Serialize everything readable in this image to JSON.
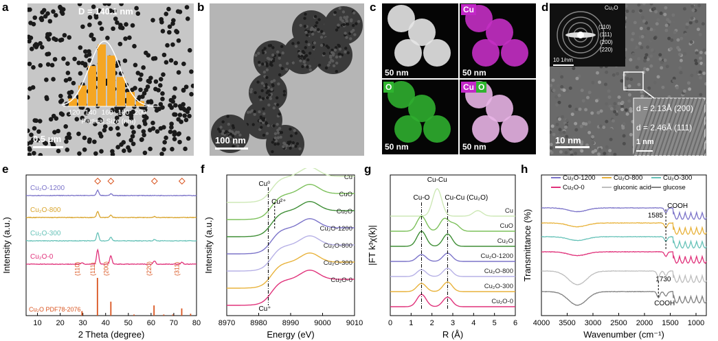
{
  "panels": {
    "a": {
      "label": "a",
      "annot": "D = 140.1 nm",
      "scale": "0.5 μm",
      "xticks": [
        "120",
        "140",
        "160",
        "180",
        "200"
      ],
      "xlabel": "Partical Size (nm)",
      "hist": [
        0.12,
        0.32,
        0.62,
        0.95,
        0.78,
        0.45,
        0.22,
        0.08
      ]
    },
    "b": {
      "label": "b",
      "scale": "100 nm"
    },
    "c": {
      "label": "c",
      "tiles": [
        {
          "tag": "",
          "scale": "50 nm"
        },
        {
          "tag": "Cu",
          "scale": "50 nm"
        },
        {
          "tag": "O",
          "scale": "50 nm"
        },
        {
          "tag": "Cu",
          "tag2": "O",
          "scale": "50 nm"
        }
      ]
    },
    "d": {
      "label": "d",
      "inset_title": "Cu₂O",
      "rings": [
        "(110)",
        "(111)",
        "(200)",
        "(220)"
      ],
      "inset_scale": "10 1/nm",
      "scale": "10 nm",
      "lattice": [
        "d = 2.13Å (200)",
        "d = 2.46Å (111)"
      ],
      "inset_scale2": "1 nm"
    },
    "e": {
      "label": "e"
    },
    "f": {
      "label": "f"
    },
    "g": {
      "label": "g"
    },
    "h": {
      "label": "h"
    }
  },
  "chart_data": [
    {
      "type": "line",
      "panel": "e",
      "xlabel": "2 Theta (degree)",
      "ylabel": "Intensity (a.u.)",
      "xlim": [
        5,
        80
      ],
      "xticks": [
        10,
        20,
        30,
        40,
        50,
        60,
        70,
        80
      ],
      "series": [
        {
          "name": "Cu₂O-1200",
          "color": "#7b73c9",
          "offset": 4,
          "peaks": [
            [
              36.5,
              0.35
            ],
            [
              42.3,
              0.12
            ]
          ]
        },
        {
          "name": "Cu₂O-800",
          "color": "#d9a42b",
          "offset": 3,
          "peaks": [
            [
              36.5,
              0.4
            ],
            [
              42.3,
              0.15
            ],
            [
              61.5,
              0.06
            ]
          ]
        },
        {
          "name": "Cu₂O-300",
          "color": "#66c2b8",
          "offset": 2,
          "peaks": [
            [
              36.5,
              0.55
            ],
            [
              42.3,
              0.25
            ],
            [
              61.5,
              0.08
            ]
          ]
        },
        {
          "name": "Cu₂O-0",
          "color": "#e0317a",
          "offset": 1,
          "peaks": [
            [
              29.6,
              0.1
            ],
            [
              36.5,
              0.95
            ],
            [
              42.3,
              0.55
            ],
            [
              61.5,
              0.22
            ],
            [
              73.6,
              0.12
            ]
          ]
        }
      ],
      "markers": [
        36.5,
        42.3,
        61.5,
        73.6
      ],
      "reference": {
        "name": "Cu₂O PDF78-2076",
        "color": "#d9531e",
        "lines": [
          [
            29.6,
            0.12
          ],
          [
            36.4,
            1.0
          ],
          [
            42.3,
            0.37
          ],
          [
            52.5,
            0.03
          ],
          [
            61.3,
            0.27
          ],
          [
            65.6,
            0.03
          ],
          [
            69.6,
            0.03
          ],
          [
            73.5,
            0.19
          ],
          [
            77.4,
            0.05
          ]
        ],
        "labels": [
          [
            "(110)",
            29.6
          ],
          [
            "(111)",
            36.4
          ],
          [
            "(200)",
            42.3
          ],
          [
            "(220)",
            61.3
          ],
          [
            "(311)",
            73.5
          ]
        ]
      }
    },
    {
      "type": "line",
      "panel": "f",
      "xlabel": "Energy (eV)",
      "ylabel": "Intensity (a.u.)",
      "xlim": [
        8970,
        9010
      ],
      "xticks": [
        8970,
        8980,
        8990,
        9000,
        9010
      ],
      "series": [
        {
          "name": "Cu",
          "color": "#cde8b5"
        },
        {
          "name": "CuO",
          "color": "#7cc05a"
        },
        {
          "name": "Cu₂O",
          "color": "#3e8e35"
        },
        {
          "name": "Cu₂O-1200",
          "color": "#7b73c9"
        },
        {
          "name": "Cu₂O-800",
          "color": "#b6b0e6"
        },
        {
          "name": "Cu₂O-300",
          "color": "#e8b23a"
        },
        {
          "name": "Cu₂O-0",
          "color": "#e0317a"
        }
      ],
      "annotations": [
        "Cu⁰",
        "Cu²⁺",
        "Cu⁺"
      ]
    },
    {
      "type": "line",
      "panel": "g",
      "xlabel": "R (Å)",
      "ylabel": "|FT k³χ(k)|",
      "xlim": [
        0,
        6
      ],
      "xticks": [
        0,
        1,
        2,
        3,
        4,
        5,
        6
      ],
      "series": [
        {
          "name": "Cu",
          "color": "#cde8b5"
        },
        {
          "name": "CuO",
          "color": "#7cc05a"
        },
        {
          "name": "Cu₂O",
          "color": "#3e8e35"
        },
        {
          "name": "Cu₂O-1200",
          "color": "#7b73c9"
        },
        {
          "name": "Cu₂O-800",
          "color": "#b6b0e6"
        },
        {
          "name": "Cu₂O-300",
          "color": "#e8b23a"
        },
        {
          "name": "Cu₂O-0",
          "color": "#e0317a"
        }
      ],
      "annotations": [
        "Cu-Cu",
        "Cu-O",
        "Cu-Cu (Cu₂O)"
      ]
    },
    {
      "type": "line",
      "panel": "h",
      "xlabel": "Wavenumber (cm⁻¹)",
      "ylabel": "Transmittance (%)",
      "xlim": [
        4000,
        800
      ],
      "xticks": [
        4000,
        3500,
        3000,
        2500,
        2000,
        1500,
        1000
      ],
      "series": [
        {
          "name": "Cu₂O-1200",
          "color": "#7b73c9"
        },
        {
          "name": "Cu₂O-800",
          "color": "#e8b23a"
        },
        {
          "name": "Cu₂O-300",
          "color": "#66c2b8"
        },
        {
          "name": "Cu₂O-0",
          "color": "#e0317a"
        },
        {
          "name": "gluconic acid",
          "color": "#bdbdbd"
        },
        {
          "name": "glucose",
          "color": "#808080"
        }
      ],
      "annotations": [
        "COOH",
        "1585",
        "1730",
        "COOH"
      ]
    }
  ]
}
